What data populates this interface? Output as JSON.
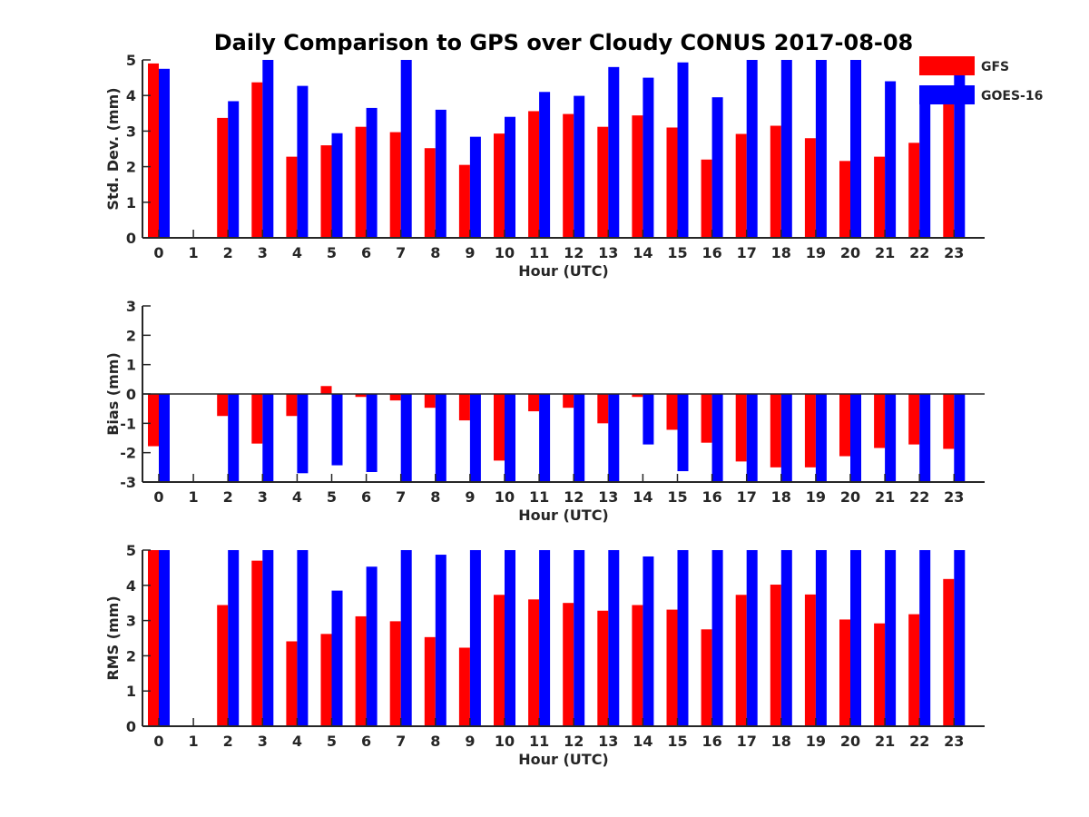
{
  "title": "Daily Comparison to GPS over Cloudy CONUS 2017-08-08",
  "colors": {
    "GFS": "#ff0000",
    "GOES-16": "#0000ff",
    "axis": "#262626"
  },
  "chart_data": [
    {
      "type": "bar",
      "ylabel": "Std. Dev. (mm)",
      "xlabel": "Hour (UTC)",
      "ylim": [
        0,
        5
      ],
      "yticks": [
        0,
        1,
        2,
        3,
        4,
        5
      ],
      "zero_line": false,
      "legend": {
        "placement": "top-right",
        "entries": [
          "GFS",
          "GOES-16"
        ]
      },
      "categories": [
        0,
        1,
        2,
        3,
        4,
        5,
        6,
        7,
        8,
        9,
        10,
        11,
        12,
        13,
        14,
        15,
        16,
        17,
        18,
        19,
        20,
        21,
        22,
        23
      ],
      "series": [
        {
          "name": "GFS",
          "values": [
            4.9,
            null,
            3.37,
            4.37,
            2.28,
            2.6,
            3.12,
            2.97,
            2.52,
            2.05,
            2.93,
            3.56,
            3.48,
            3.12,
            3.44,
            3.1,
            2.2,
            2.92,
            3.15,
            2.8,
            2.16,
            2.28,
            2.67,
            4.1
          ]
        },
        {
          "name": "GOES-16",
          "values": [
            4.75,
            null,
            3.84,
            5.0,
            4.27,
            2.94,
            3.65,
            5.0,
            3.6,
            2.84,
            3.4,
            4.1,
            3.99,
            4.8,
            4.5,
            4.93,
            3.95,
            5.0,
            5.0,
            5.0,
            5.0,
            4.4,
            4.1,
            4.7
          ]
        }
      ]
    },
    {
      "type": "bar",
      "ylabel": "Bias (mm)",
      "xlabel": "Hour (UTC)",
      "ylim": [
        -3,
        3
      ],
      "yticks": [
        -3,
        -2,
        -1,
        0,
        1,
        2,
        3
      ],
      "zero_line": true,
      "categories": [
        0,
        1,
        2,
        3,
        4,
        5,
        6,
        7,
        8,
        9,
        10,
        11,
        12,
        13,
        14,
        15,
        16,
        17,
        18,
        19,
        20,
        21,
        22,
        23
      ],
      "series": [
        {
          "name": "GFS",
          "values": [
            -1.78,
            null,
            -0.75,
            -1.69,
            -0.75,
            0.27,
            -0.1,
            -0.22,
            -0.47,
            -0.9,
            -2.27,
            -0.59,
            -0.47,
            -1.0,
            -0.1,
            -1.22,
            -1.66,
            -2.3,
            -2.5,
            -2.5,
            -2.12,
            -1.84,
            -1.72,
            -1.87
          ]
        },
        {
          "name": "GOES-16",
          "values": [
            -3.0,
            null,
            -3.0,
            -3.0,
            -2.7,
            -2.43,
            -2.66,
            -3.0,
            -3.0,
            -3.0,
            -3.0,
            -3.0,
            -3.0,
            -3.0,
            -1.72,
            -2.63,
            -3.0,
            -3.0,
            -3.0,
            -3.0,
            -3.0,
            -3.0,
            -3.0,
            -3.0
          ]
        }
      ]
    },
    {
      "type": "bar",
      "ylabel": "RMS (mm)",
      "xlabel": "Hour (UTC)",
      "ylim": [
        0,
        5
      ],
      "yticks": [
        0,
        1,
        2,
        3,
        4,
        5
      ],
      "zero_line": false,
      "categories": [
        0,
        1,
        2,
        3,
        4,
        5,
        6,
        7,
        8,
        9,
        10,
        11,
        12,
        13,
        14,
        15,
        16,
        17,
        18,
        19,
        20,
        21,
        22,
        23
      ],
      "series": [
        {
          "name": "GFS",
          "values": [
            5.0,
            null,
            3.44,
            4.7,
            2.41,
            2.62,
            3.12,
            2.98,
            2.53,
            2.23,
            3.73,
            3.6,
            3.5,
            3.28,
            3.44,
            3.31,
            2.75,
            3.73,
            4.02,
            3.74,
            3.03,
            2.92,
            3.18,
            4.18
          ]
        },
        {
          "name": "GOES-16",
          "values": [
            5.0,
            null,
            5.0,
            5.0,
            5.0,
            3.85,
            4.53,
            5.0,
            4.87,
            5.0,
            5.0,
            5.0,
            5.0,
            5.0,
            4.82,
            5.0,
            5.0,
            5.0,
            5.0,
            5.0,
            5.0,
            5.0,
            5.0,
            5.0
          ]
        }
      ]
    }
  ]
}
